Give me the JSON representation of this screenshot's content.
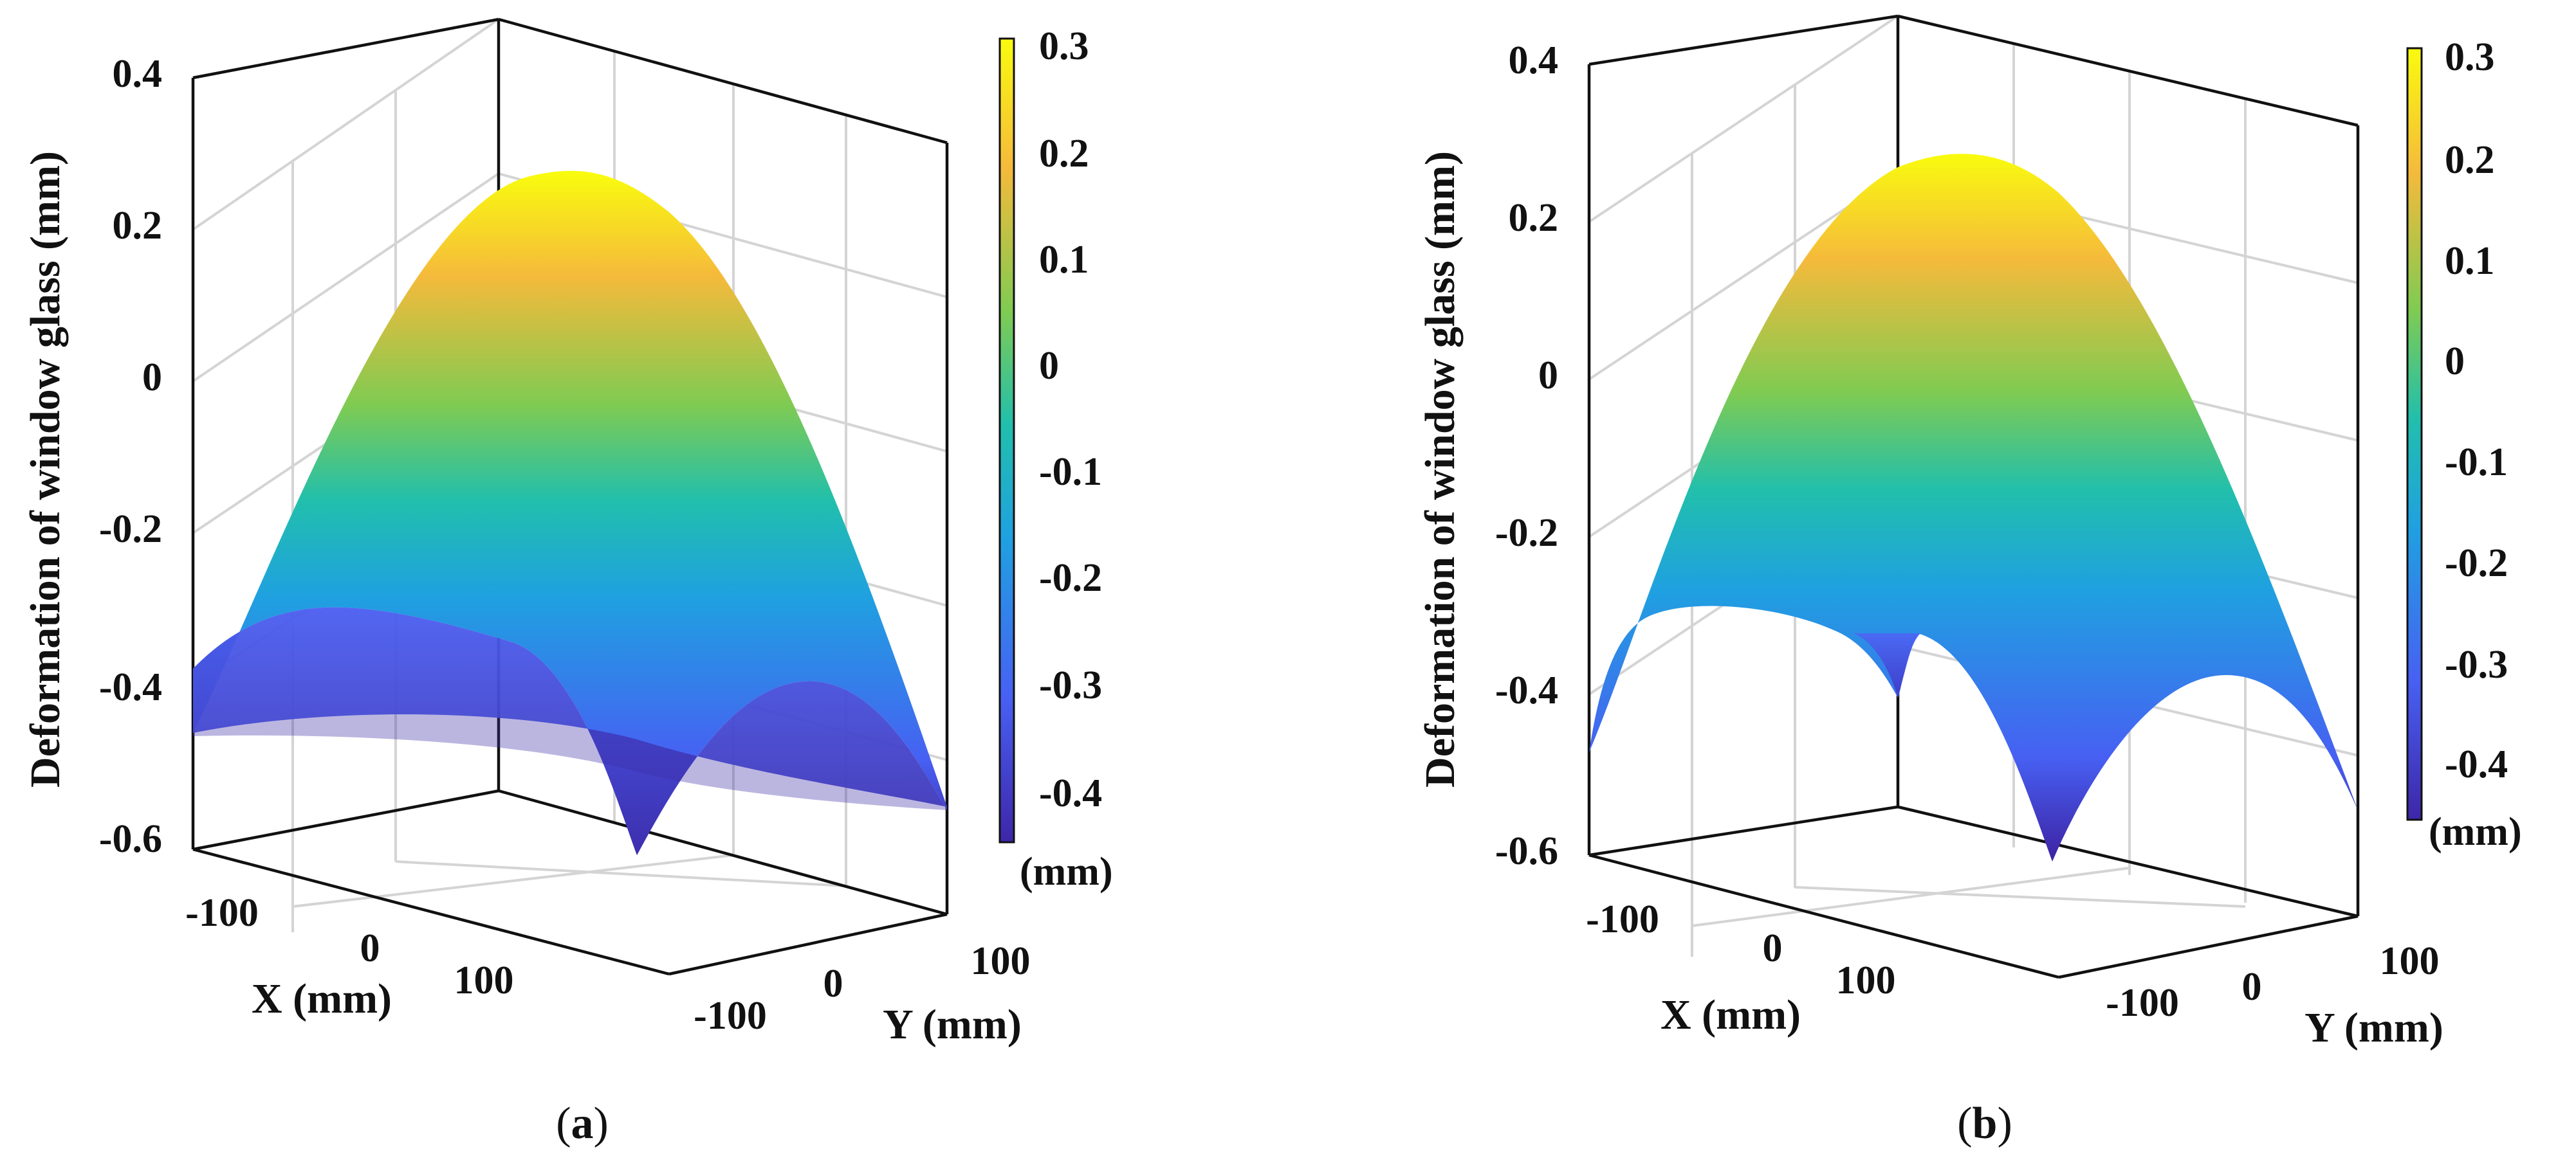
{
  "figure": {
    "captions": [
      "(a)",
      "(b)"
    ]
  },
  "chart_data": [
    {
      "type": "surface3d",
      "panel": "(a)",
      "zlabel": "Deformation of window glass (mm)",
      "xlabel": "X (mm)",
      "ylabel": "Y (mm)",
      "zticks": [
        "0.4",
        "0.2",
        "0",
        "-0.2",
        "-0.4",
        "-0.6"
      ],
      "xticks": [
        "-100",
        "0",
        "100"
      ],
      "yticks": [
        "-100",
        "0",
        "100"
      ],
      "zlim": [
        -0.6,
        0.4
      ],
      "colorbar": {
        "ticks": [
          "0.3",
          "0.2",
          "0.1",
          "0",
          "-0.1",
          "-0.2",
          "-0.3",
          "-0.4"
        ],
        "unit": "(mm)",
        "range": [
          -0.45,
          0.31
        ]
      },
      "surface": {
        "peak": 0.27,
        "edge_min": -0.58
      },
      "colors": {
        "c0": "#3e26a8",
        "c1": "#4760f3",
        "c2": "#1fa1e0",
        "c3": "#21bfac",
        "c4": "#7fcb52",
        "c5": "#f5ba3b",
        "c6": "#f9fb0e",
        "axis": "#111111",
        "grid": "#d4d4d4"
      }
    },
    {
      "type": "surface3d",
      "panel": "(b)",
      "zlabel": "Deformation of window glass (mm)",
      "xlabel": "X (mm)",
      "ylabel": "Y (mm)",
      "zticks": [
        "0.4",
        "0.2",
        "0",
        "-0.2",
        "-0.4",
        "-0.6"
      ],
      "xticks": [
        "-100",
        "0",
        "100"
      ],
      "yticks": [
        "-100",
        "0",
        "100"
      ],
      "zlim": [
        -0.6,
        0.4
      ],
      "colorbar": {
        "ticks": [
          "0.3",
          "0.2",
          "0.1",
          "0",
          "-0.1",
          "-0.2",
          "-0.3",
          "-0.4"
        ],
        "unit": "(mm)",
        "range": [
          -0.45,
          0.31
        ]
      },
      "surface": {
        "peak": 0.29,
        "edge_min": -0.58
      },
      "colors": {
        "c0": "#3e26a8",
        "c1": "#4760f3",
        "c2": "#1fa1e0",
        "c3": "#21bfac",
        "c4": "#7fcb52",
        "c5": "#f5ba3b",
        "c6": "#f9fb0e",
        "axis": "#111111",
        "grid": "#d4d4d4"
      }
    }
  ]
}
